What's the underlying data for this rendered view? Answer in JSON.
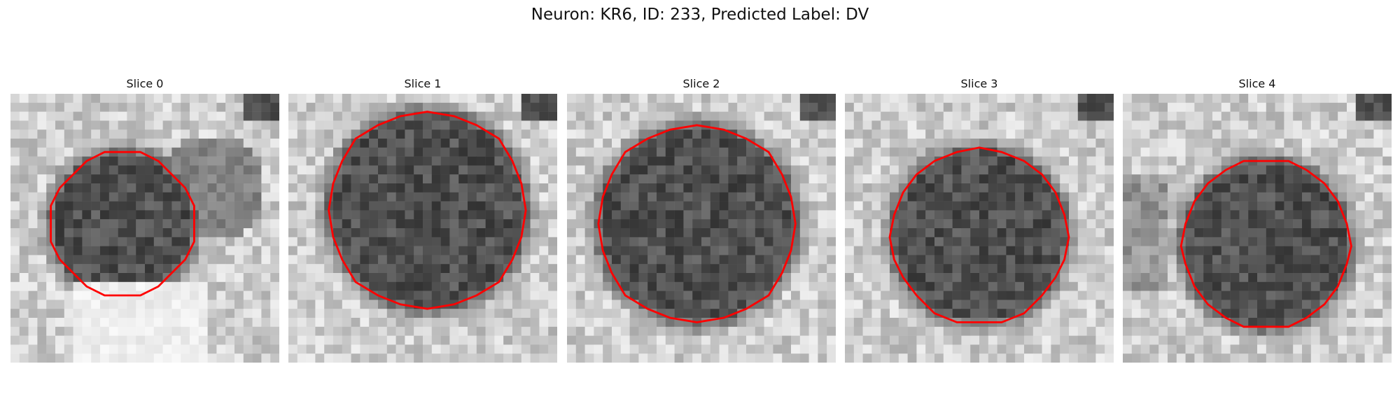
{
  "figure": {
    "title": "Neuron: KR6, ID: 233, Predicted Label: DV"
  },
  "slices": [
    {
      "title": "Slice 0",
      "center": [
        12.5,
        14.5
      ],
      "radius": 7.5,
      "bright_zone": "bottom"
    },
    {
      "title": "Slice 1",
      "center": [
        15.5,
        13.0
      ],
      "radius": 10.5,
      "bright_zone": "none"
    },
    {
      "title": "Slice 2",
      "center": [
        14.5,
        14.5
      ],
      "radius": 10.5,
      "bright_zone": "none"
    },
    {
      "title": "Slice 3",
      "center": [
        15.0,
        15.8
      ],
      "radius": 9.2,
      "bright_zone": "none"
    },
    {
      "title": "Slice 4",
      "center": [
        16.0,
        16.8
      ],
      "radius": 8.8,
      "bright_zone": "left"
    }
  ],
  "colors": {
    "contour": "#ff0000",
    "background_gray": "#d8d8d8",
    "cell_gray": "#4a4a4a"
  }
}
